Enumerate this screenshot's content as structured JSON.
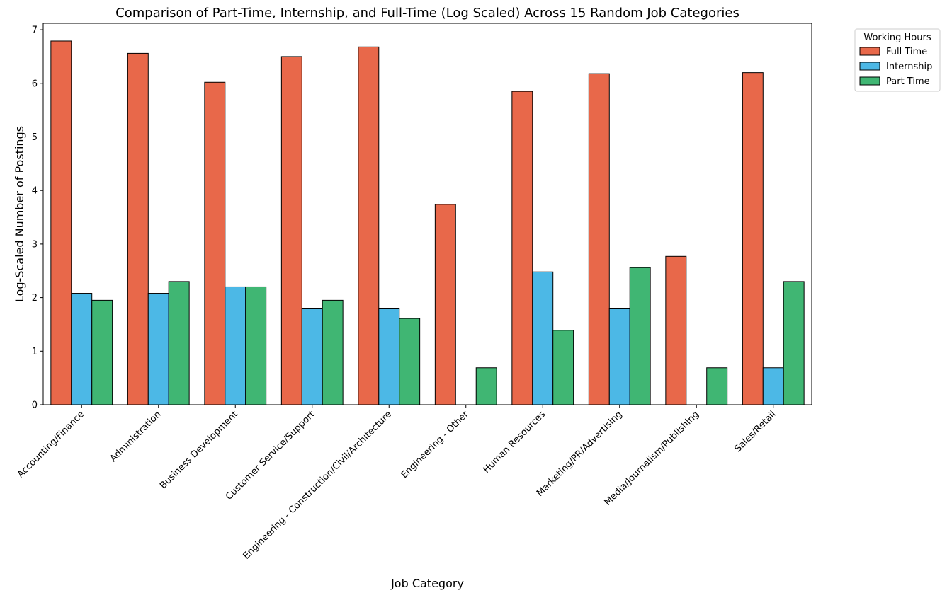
{
  "chart_data": {
    "type": "bar",
    "title": "Comparison of Part-Time, Internship, and Full-Time (Log Scaled) Across 15 Random Job Categories",
    "xlabel": "Job Category",
    "ylabel": "Log-Scaled Number of Postings",
    "ylim": [
      0,
      7.12
    ],
    "yticks": [
      "0",
      "1",
      "2",
      "3",
      "4",
      "5",
      "6",
      "7"
    ],
    "grid": false,
    "legend": {
      "title": "Working Hours",
      "placement": "outside-top-right"
    },
    "categories": [
      "Accounting/Finance",
      "Administration",
      "Business Development",
      "Customer Service/Support",
      "Engineering - Construction/Civil/Architecture",
      "Engineering - Other",
      "Human Resources",
      "Marketing/PR/Advertising",
      "Media/Journalism/Publishing",
      "Sales/Retail"
    ],
    "series": [
      {
        "name": "Full Time",
        "color": "#e8684a",
        "values": [
          6.79,
          6.56,
          6.02,
          6.5,
          6.68,
          3.74,
          5.85,
          6.18,
          2.77,
          6.2
        ]
      },
      {
        "name": "Internship",
        "color": "#4cb8e6",
        "values": [
          2.08,
          2.08,
          2.2,
          1.79,
          1.79,
          0,
          2.48,
          1.79,
          0,
          0.69
        ]
      },
      {
        "name": "Part Time",
        "color": "#40b673",
        "values": [
          1.95,
          2.3,
          2.2,
          1.95,
          1.61,
          0.69,
          1.39,
          2.56,
          0.69,
          2.3
        ]
      }
    ]
  }
}
